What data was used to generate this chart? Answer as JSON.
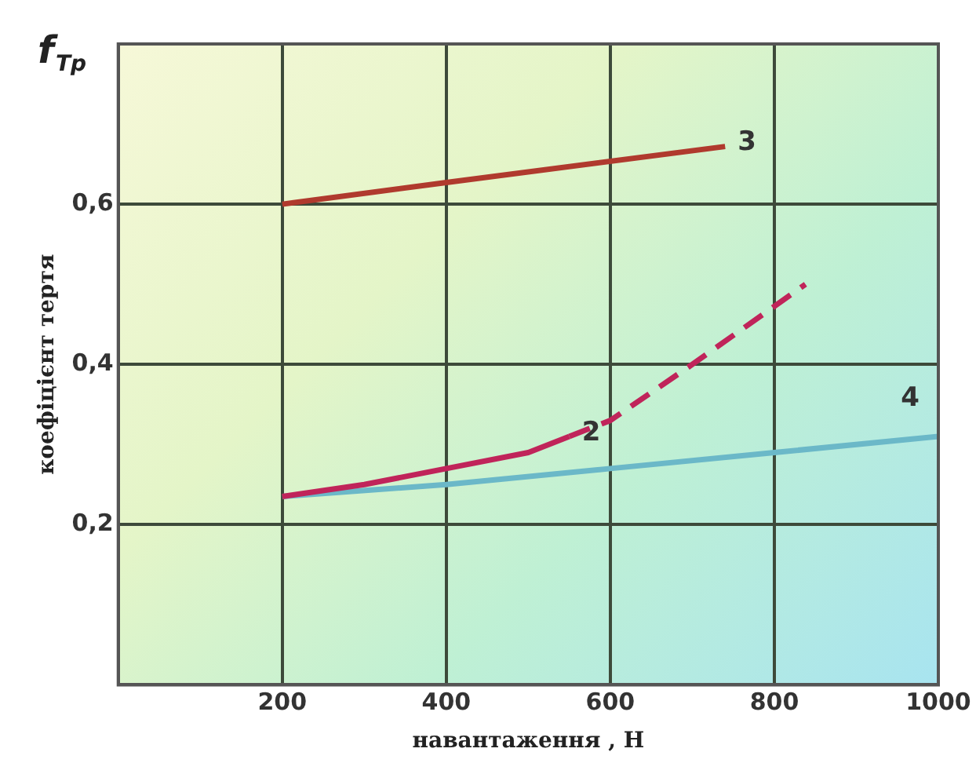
{
  "chart_data": {
    "type": "line",
    "title": "f$_{Тр}$",
    "xlabel": "навантаження , Н",
    "ylabel": "коефіцієнт тертя",
    "xlim": [
      0,
      1000
    ],
    "xticks": [
      200,
      400,
      600,
      800,
      1000
    ],
    "ylim": [
      0,
      0.8
    ],
    "yticks": [
      {
        "value": 0.2,
        "label": "0,2"
      },
      {
        "value": 0.4,
        "label": "0,4"
      },
      {
        "value": 0.6,
        "label": "0,6"
      }
    ],
    "grid": true,
    "legend": false,
    "marker": "none",
    "line_style": "solid",
    "series": [
      {
        "name": "3",
        "color": "#b03a2e",
        "x": [
          200,
          400,
          740
        ],
        "values": [
          0.6,
          0.627,
          0.672
        ]
      },
      {
        "name": "2",
        "color": "#c0245a",
        "x": [
          200,
          300,
          400,
          500,
          550
        ],
        "values": [
          0.235,
          0.25,
          0.27,
          0.29,
          0.31
        ]
      },
      {
        "color": "#c0245a",
        "line_style": "dashed",
        "x": [
          550,
          600,
          700,
          838
        ],
        "values": [
          0.31,
          0.33,
          0.4,
          0.5
        ]
      },
      {
        "name": "4",
        "color": "#6bb8c8",
        "x": [
          200,
          400,
          600,
          800,
          1000
        ],
        "values": [
          0.235,
          0.25,
          0.27,
          0.29,
          0.31
        ]
      }
    ]
  }
}
